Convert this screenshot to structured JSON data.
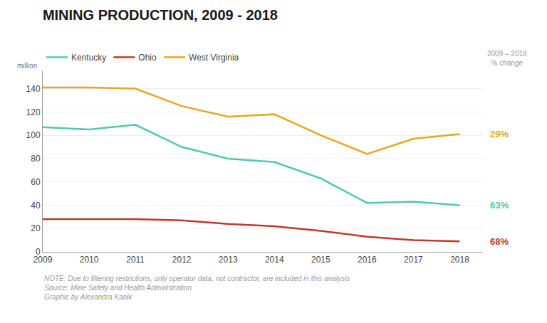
{
  "chart_data": {
    "type": "line",
    "title": "MINING PRODUCTION, 2009 - 2018",
    "ylabel": "million",
    "x": [
      2009,
      2010,
      2011,
      2012,
      2013,
      2014,
      2015,
      2016,
      2017,
      2018
    ],
    "series": [
      {
        "name": "Kentucky",
        "color": "#4ec9b0",
        "values": [
          107,
          105,
          109,
          90,
          80,
          77,
          63,
          42,
          43,
          40
        ],
        "change_label": "63%"
      },
      {
        "name": "Ohio",
        "color": "#c0392b",
        "values": [
          28,
          28,
          28,
          27,
          24,
          22,
          18,
          13,
          10,
          9
        ],
        "change_label": "68%"
      },
      {
        "name": "West Virginia",
        "color": "#e5a820",
        "values": [
          141,
          141,
          140,
          125,
          116,
          118,
          100,
          84,
          97,
          101
        ],
        "change_label": "29%"
      }
    ],
    "xlim": [
      2009,
      2018.5
    ],
    "xticks": [
      2009,
      2010,
      2011,
      2012,
      2013,
      2014,
      2015,
      2016,
      2017,
      2018
    ],
    "ylim": [
      0,
      155
    ],
    "yticks": [
      0,
      20,
      40,
      60,
      80,
      100,
      120,
      140
    ],
    "grid": true,
    "legend": "top left",
    "annotations": [
      "2009 – 2018\n% change",
      "NOTE: Due to filtering restrictions, only operator data, not contractor, are included in this analysis\nSource: Mine Safety and Health Administration\nGraphic by Alexandra Kanik"
    ]
  }
}
